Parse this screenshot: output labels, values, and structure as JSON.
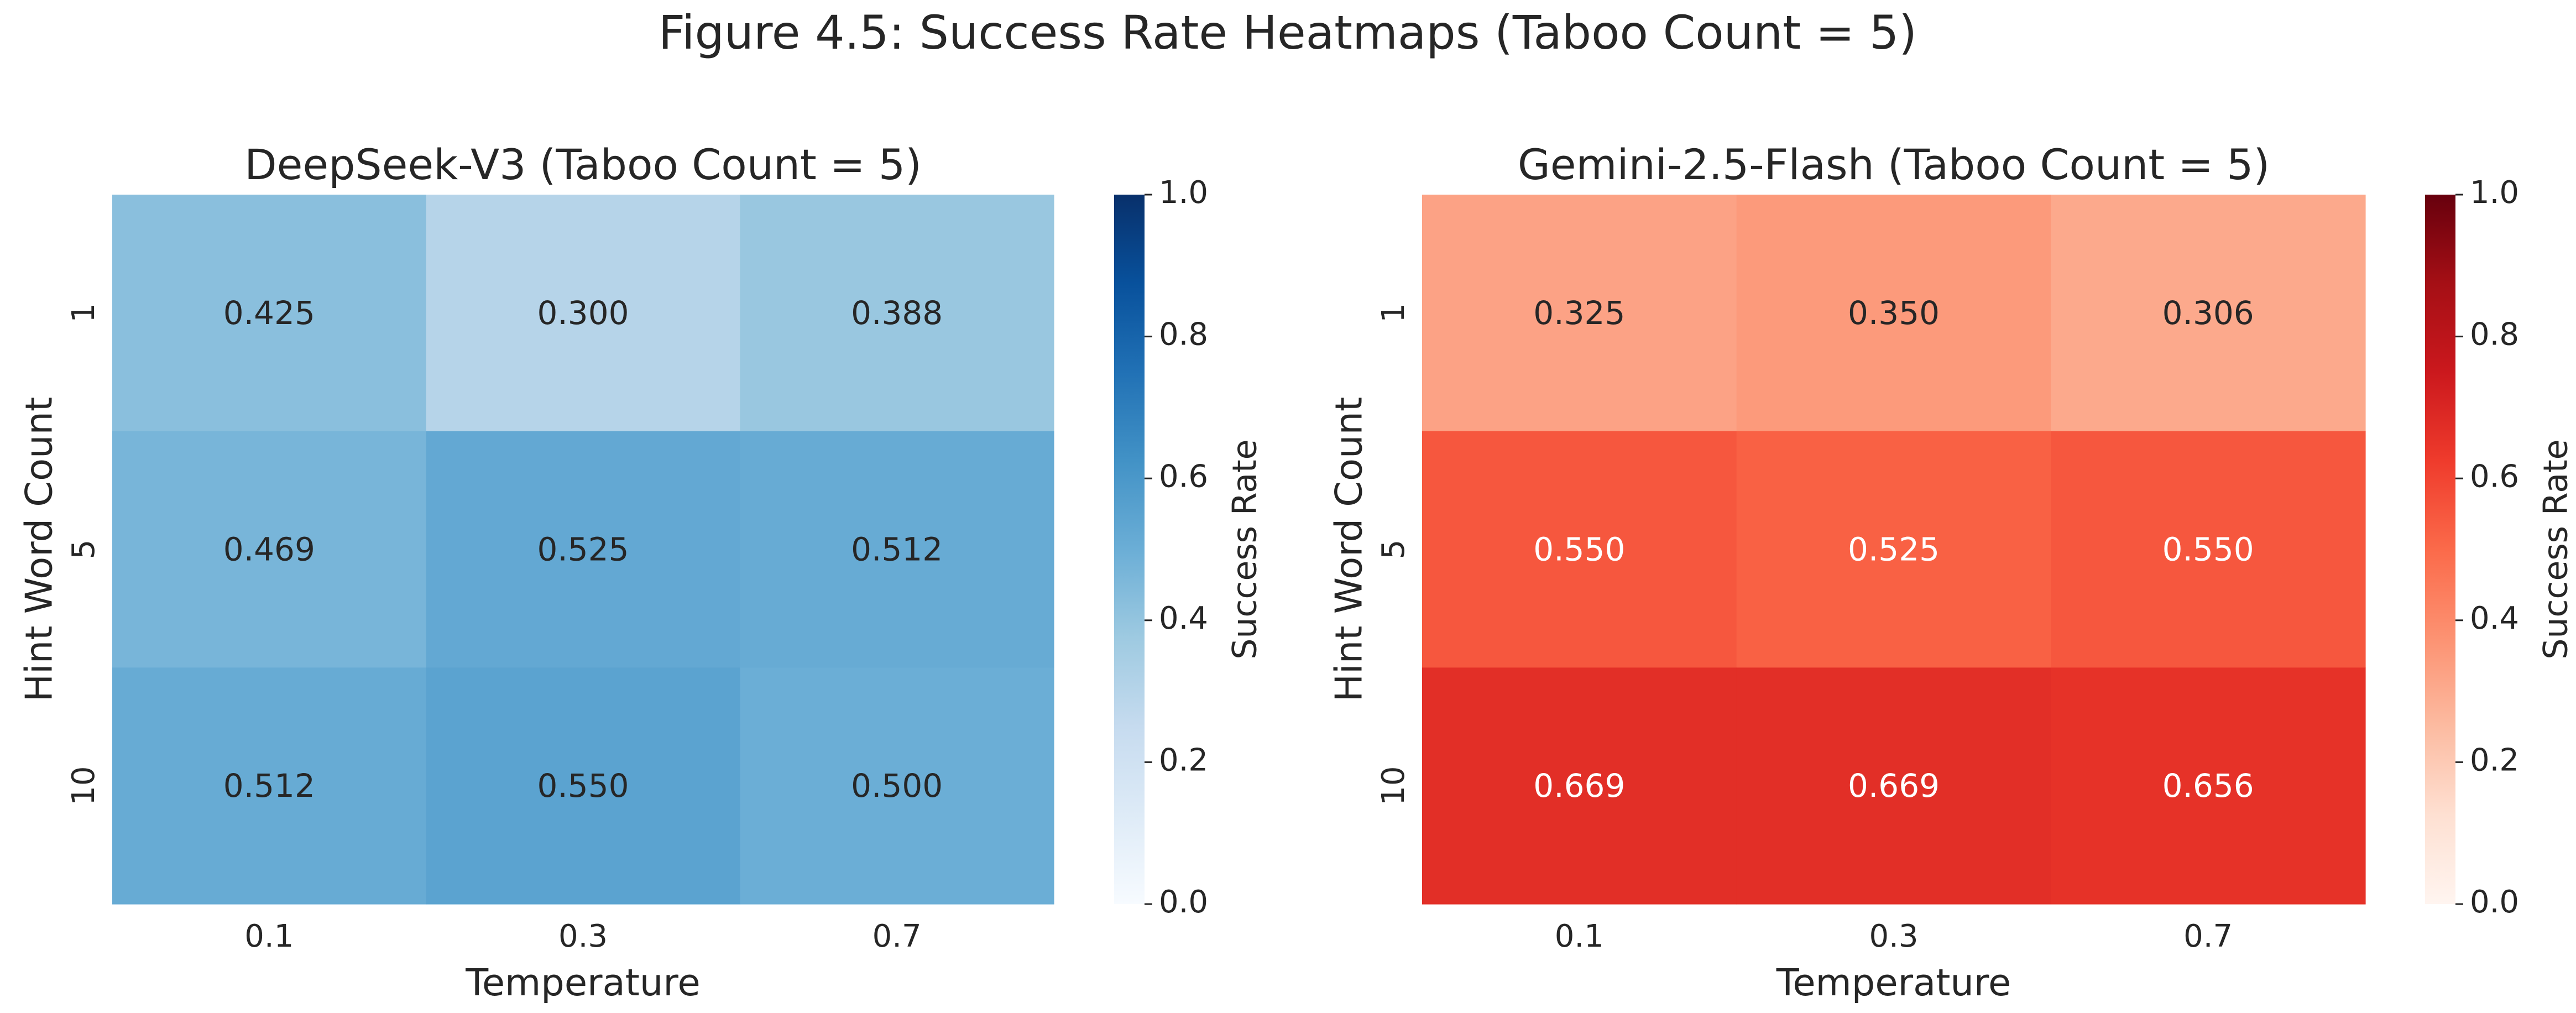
{
  "figure": {
    "title": "Figure 4.5: Success Rate Heatmaps (Taboo Count = 5)"
  },
  "chart_data": [
    {
      "type": "heatmap",
      "title": "DeepSeek-V3 (Taboo Count = 5)",
      "xlabel": "Temperature",
      "ylabel": "Hint Word Count",
      "x_categories": [
        "0.1",
        "0.3",
        "0.7"
      ],
      "y_categories": [
        "1",
        "5",
        "10"
      ],
      "values": [
        [
          0.425,
          0.3,
          0.388
        ],
        [
          0.469,
          0.525,
          0.512
        ],
        [
          0.512,
          0.55,
          0.5
        ]
      ],
      "value_labels": [
        [
          "0.425",
          "0.300",
          "0.388"
        ],
        [
          "0.469",
          "0.525",
          "0.512"
        ],
        [
          "0.512",
          "0.550",
          "0.500"
        ]
      ],
      "colormap": "Blues",
      "vmin": 0.0,
      "vmax": 1.0,
      "colorbar": {
        "label": "Success Rate",
        "ticks": [
          "0.0",
          "0.2",
          "0.4",
          "0.6",
          "0.8",
          "1.0"
        ],
        "tick_values": [
          0.0,
          0.2,
          0.4,
          0.6,
          0.8,
          1.0
        ]
      }
    },
    {
      "type": "heatmap",
      "title": "Gemini-2.5-Flash (Taboo Count = 5)",
      "xlabel": "Temperature",
      "ylabel": "Hint Word Count",
      "x_categories": [
        "0.1",
        "0.3",
        "0.7"
      ],
      "y_categories": [
        "1",
        "5",
        "10"
      ],
      "values": [
        [
          0.325,
          0.35,
          0.306
        ],
        [
          0.55,
          0.525,
          0.55
        ],
        [
          0.669,
          0.669,
          0.656
        ]
      ],
      "value_labels": [
        [
          "0.325",
          "0.350",
          "0.306"
        ],
        [
          "0.550",
          "0.525",
          "0.550"
        ],
        [
          "0.669",
          "0.669",
          "0.656"
        ]
      ],
      "colormap": "Reds",
      "vmin": 0.0,
      "vmax": 1.0,
      "colorbar": {
        "label": "Success Rate",
        "ticks": [
          "0.0",
          "0.2",
          "0.4",
          "0.6",
          "0.8",
          "1.0"
        ],
        "tick_values": [
          0.0,
          0.2,
          0.4,
          0.6,
          0.8,
          1.0
        ]
      }
    }
  ]
}
